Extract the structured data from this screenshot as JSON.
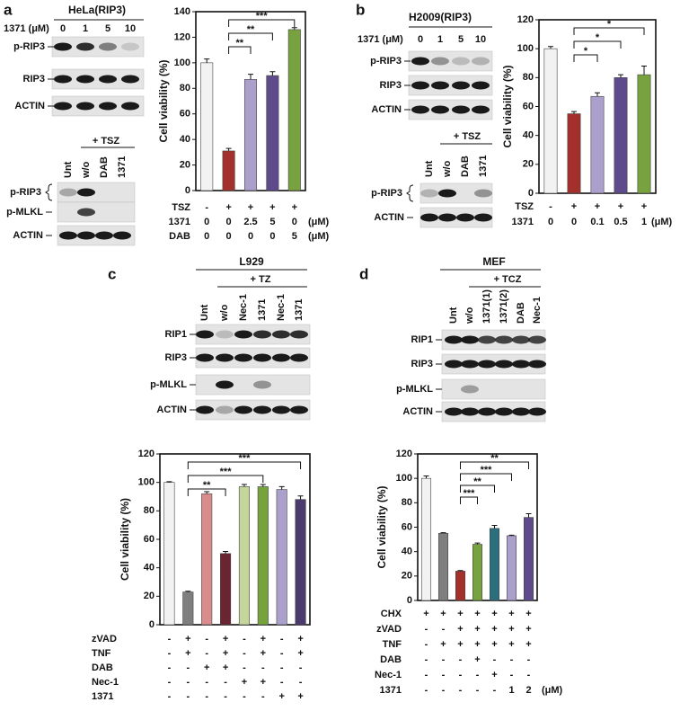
{
  "panels": [
    {
      "letter": "a",
      "cell_line": "HeLa(RIP3)",
      "dose_label": "1371 (μM)",
      "lanes": [
        "0",
        "1",
        "5",
        "10"
      ],
      "rows": [
        "p-RIP3",
        "RIP3",
        "ACTIN"
      ],
      "treatment": "+ TSZ",
      "lower_lanes": [
        "Unt",
        "w/o",
        "DAB",
        "1371"
      ],
      "lower_rows": [
        "p-RIP3",
        "p-MLKL",
        "ACTIN"
      ]
    },
    {
      "letter": "b",
      "cell_line": "H2009(RIP3)",
      "dose_label": "1371 (μM)",
      "lanes": [
        "0",
        "1",
        "5",
        "10"
      ],
      "rows": [
        "p-RIP3",
        "RIP3",
        "ACTIN"
      ],
      "treatment": "+ TSZ",
      "lower_lanes": [
        "Unt",
        "w/o",
        "DAB",
        "1371"
      ],
      "lower_rows": [
        "p-RIP3",
        "ACTIN"
      ]
    },
    {
      "letter": "c",
      "cell_line": "L929",
      "treatment": "+ TZ",
      "lanes": [
        "Unt",
        "w/o",
        "Nec-1",
        "1371",
        "Nec-1",
        "1371"
      ],
      "rows": [
        "RIP1",
        "RIP3",
        "p-MLKL",
        "ACTIN"
      ]
    },
    {
      "letter": "d",
      "cell_line": "MEF",
      "treatment": "+ TCZ",
      "lanes": [
        "Unt",
        "w/o",
        "1371(1)",
        "1371(2)",
        "DAB",
        "Nec-1"
      ],
      "rows": [
        "RIP1",
        "RIP3",
        "p-MLKL",
        "ACTIN"
      ]
    }
  ],
  "chart_data": [
    {
      "type": "bar",
      "y_label": "Cell viability (%)",
      "values": [
        100,
        31,
        87,
        90,
        126
      ],
      "errors": [
        3,
        2,
        4,
        3,
        1.5
      ],
      "colors": [
        "#f2f2f2",
        "#a3302b",
        "#ab9fcc",
        "#5f4b8b",
        "#78a13f"
      ],
      "ylim": [
        0,
        140
      ],
      "yticks": [
        0,
        20,
        40,
        60,
        80,
        100,
        120,
        140
      ],
      "conditions": [
        {
          "label": "TSZ",
          "values": [
            "-",
            "+",
            "+",
            "+",
            "+"
          ]
        },
        {
          "label": "1371",
          "values": [
            "0",
            "0",
            "2.5",
            "5",
            "0"
          ],
          "unit": "(μM)"
        },
        {
          "label": "DAB",
          "values": [
            "0",
            "0",
            "0",
            "0",
            "5"
          ],
          "unit": "(μM)"
        }
      ],
      "comparisons": [
        {
          "pair": [
            1,
            2
          ],
          "label": "**"
        },
        {
          "pair": [
            1,
            3
          ],
          "label": "**"
        },
        {
          "pair": [
            1,
            4
          ],
          "label": "***"
        }
      ]
    },
    {
      "type": "bar",
      "y_label": "Cell viability (%)",
      "values": [
        100,
        55,
        67,
        80,
        82
      ],
      "errors": [
        1.5,
        1.5,
        2.5,
        2,
        6
      ],
      "colors": [
        "#f2f2f2",
        "#a3302b",
        "#ab9fcc",
        "#5f4b8b",
        "#78a13f"
      ],
      "ylim": [
        0,
        120
      ],
      "yticks": [
        0,
        20,
        40,
        60,
        80,
        100,
        120
      ],
      "conditions": [
        {
          "label": "TSZ",
          "values": [
            "-",
            "+",
            "+",
            "+",
            "+"
          ]
        },
        {
          "label": "1371",
          "values": [
            "0",
            "0",
            "0.1",
            "0.5",
            "1"
          ],
          "unit": "(μM)"
        }
      ],
      "comparisons": [
        {
          "pair": [
            1,
            2
          ],
          "label": "*"
        },
        {
          "pair": [
            1,
            3
          ],
          "label": "*"
        },
        {
          "pair": [
            1,
            4
          ],
          "label": "*"
        }
      ]
    },
    {
      "type": "bar",
      "y_label": "Cell viability (%)",
      "values": [
        100,
        23,
        92,
        50,
        97,
        97,
        95,
        88
      ],
      "errors": [
        0.5,
        0.5,
        1.5,
        1.5,
        1.5,
        1.5,
        2,
        2.5
      ],
      "colors": [
        "#f2f2f2",
        "#7f7f7f",
        "#d98c8c",
        "#6b2431",
        "#c4d69c",
        "#77a33f",
        "#ab9fcc",
        "#4b3a6e"
      ],
      "ylim": [
        0,
        120
      ],
      "yticks": [
        0,
        20,
        40,
        60,
        80,
        100,
        120
      ],
      "conditions": [
        {
          "label": "zVAD",
          "values": [
            "-",
            "+",
            "-",
            "+",
            "-",
            "+",
            "-",
            "+"
          ]
        },
        {
          "label": "TNF",
          "values": [
            "-",
            "+",
            "-",
            "+",
            "-",
            "+",
            "-",
            "+"
          ]
        },
        {
          "label": "DAB",
          "values": [
            "-",
            "-",
            "+",
            "+",
            "-",
            "-",
            "-",
            "-"
          ]
        },
        {
          "label": "Nec-1",
          "values": [
            "-",
            "-",
            "-",
            "-",
            "+",
            "+",
            "-",
            "-"
          ]
        },
        {
          "label": "1371",
          "values": [
            "-",
            "-",
            "-",
            "-",
            "-",
            "-",
            "+",
            "+"
          ]
        }
      ],
      "comparisons": [
        {
          "pair": [
            1,
            3
          ],
          "label": "**"
        },
        {
          "pair": [
            1,
            5
          ],
          "label": "***"
        },
        {
          "pair": [
            1,
            7
          ],
          "label": "***"
        }
      ]
    },
    {
      "type": "bar",
      "y_label": "Cell viability (%)",
      "values": [
        100,
        55,
        24,
        46,
        59,
        53,
        68
      ],
      "errors": [
        2,
        0.5,
        0.5,
        1,
        2.5,
        0.5,
        3
      ],
      "colors": [
        "#f2f2f2",
        "#7f7f7f",
        "#a3302b",
        "#78a13f",
        "#2b6f7e",
        "#ab9fcc",
        "#5f4b8b"
      ],
      "ylim": [
        0,
        120
      ],
      "yticks": [
        0,
        20,
        40,
        60,
        80,
        100,
        120
      ],
      "conditions": [
        {
          "label": "CHX",
          "values": [
            "+",
            "+",
            "+",
            "+",
            "+",
            "+",
            "+"
          ]
        },
        {
          "label": "zVAD",
          "values": [
            "-",
            "-",
            "+",
            "+",
            "+",
            "+",
            "+"
          ]
        },
        {
          "label": "TNF",
          "values": [
            "-",
            "+",
            "+",
            "+",
            "+",
            "+",
            "+"
          ]
        },
        {
          "label": "DAB",
          "values": [
            "-",
            "-",
            "-",
            "+",
            "-",
            "-",
            "-"
          ]
        },
        {
          "label": "Nec-1",
          "values": [
            "-",
            "-",
            "-",
            "-",
            "+",
            "-",
            "-"
          ]
        },
        {
          "label": "1371",
          "values": [
            "-",
            "-",
            "-",
            "-",
            "-",
            "1",
            "2"
          ],
          "unit": "(μM)"
        }
      ],
      "comparisons": [
        {
          "pair": [
            2,
            3
          ],
          "label": "***"
        },
        {
          "pair": [
            2,
            4
          ],
          "label": "**"
        },
        {
          "pair": [
            2,
            5
          ],
          "label": "***"
        },
        {
          "pair": [
            2,
            6
          ],
          "label": "**"
        }
      ]
    }
  ]
}
